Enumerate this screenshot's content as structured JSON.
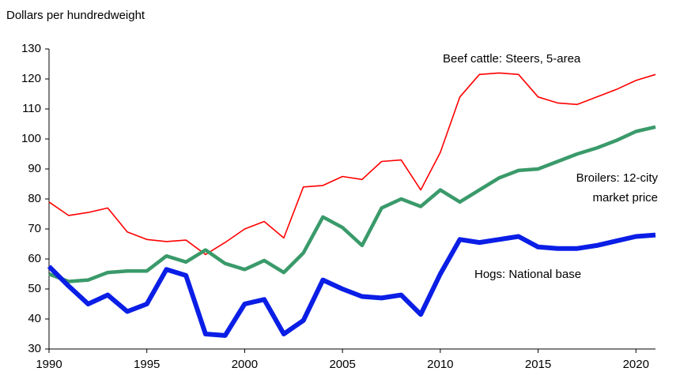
{
  "chart_data": {
    "type": "line",
    "y_label": "Dollars per hundredweight",
    "x": [
      1990,
      1991,
      1992,
      1993,
      1994,
      1995,
      1996,
      1997,
      1998,
      1999,
      2000,
      2001,
      2002,
      2003,
      2004,
      2005,
      2006,
      2007,
      2008,
      2009,
      2010,
      2011,
      2012,
      2013,
      2014,
      2015,
      2016,
      2017,
      2018,
      2019,
      2020,
      2021
    ],
    "xlim": [
      1990,
      2021
    ],
    "xticks": [
      1990,
      1995,
      2000,
      2005,
      2010,
      2015,
      2020
    ],
    "ylim": [
      30,
      130
    ],
    "yticks": [
      30,
      40,
      50,
      60,
      70,
      80,
      90,
      100,
      110,
      120,
      130
    ],
    "grid": false,
    "series": [
      {
        "name": "Beef cattle: Steers, 5-area",
        "color": "#ff0000",
        "width": 1.6,
        "values": [
          79,
          74.5,
          75.5,
          77,
          69,
          66.5,
          65.8,
          66.3,
          61.5,
          65.5,
          70,
          72.5,
          67,
          84,
          84.5,
          87.5,
          86.5,
          92.5,
          93,
          83,
          95.5,
          114,
          121.5,
          122,
          121.5,
          114,
          112,
          111.5,
          114,
          116.5,
          119.5,
          121.5
        ]
      },
      {
        "name": "Broilers: 12-city market price",
        "color": "#3a9a6a",
        "width": 4.5,
        "values": [
          55,
          52.5,
          53,
          55.5,
          56,
          56,
          61,
          59,
          63,
          58.5,
          56.5,
          59.5,
          55.5,
          62,
          74,
          70.5,
          64.5,
          77,
          80,
          77.5,
          83,
          79,
          83,
          87,
          89.5,
          90,
          92.5,
          95,
          97,
          99.5,
          102.5,
          104
        ]
      },
      {
        "name": "Hogs: National base",
        "color": "#0a1ee6",
        "width": 6,
        "values": [
          57.5,
          51,
          45,
          48,
          42.5,
          45,
          56.5,
          54.5,
          35,
          34.5,
          45,
          46.5,
          35,
          39.5,
          53,
          50,
          47.5,
          47,
          48,
          41.5,
          55,
          66.5,
          65.5,
          66.5,
          67.5,
          64,
          63.5,
          63.5,
          64.5,
          66,
          67.5,
          68
        ]
      }
    ]
  }
}
